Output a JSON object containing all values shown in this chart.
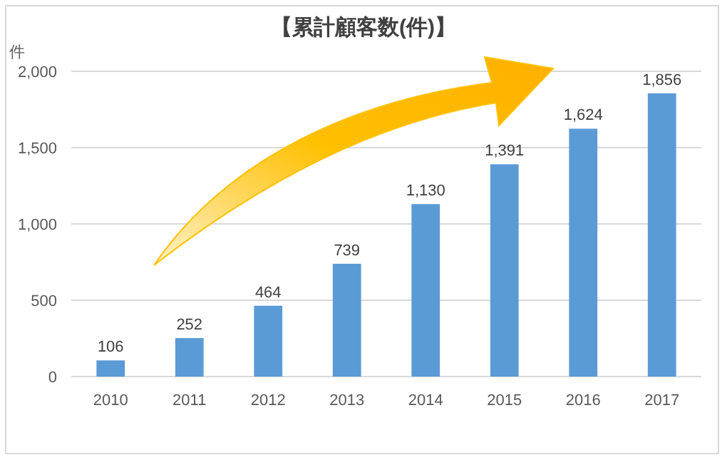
{
  "chart_data": {
    "type": "bar",
    "title": "【累計顧客数(件)】",
    "ylabel": "件",
    "categories": [
      "2010",
      "2011",
      "2012",
      "2013",
      "2014",
      "2015",
      "2016",
      "2017"
    ],
    "values": [
      106,
      252,
      464,
      739,
      1130,
      1391,
      1624,
      1856
    ],
    "value_labels": [
      "106",
      "252",
      "464",
      "739",
      "1,130",
      "1,391",
      "1,624",
      "1,856"
    ],
    "color": "#5b9bd5",
    "ylim": [
      0,
      2000
    ],
    "yticks": [
      0,
      {
        "value": 500,
        "label": "500"
      },
      {
        "value": 1000,
        "label": "1,000"
      },
      {
        "value": 1500,
        "label": "1,500"
      },
      {
        "value": 2000,
        "label": "2,000"
      }
    ],
    "grid": "y"
  }
}
